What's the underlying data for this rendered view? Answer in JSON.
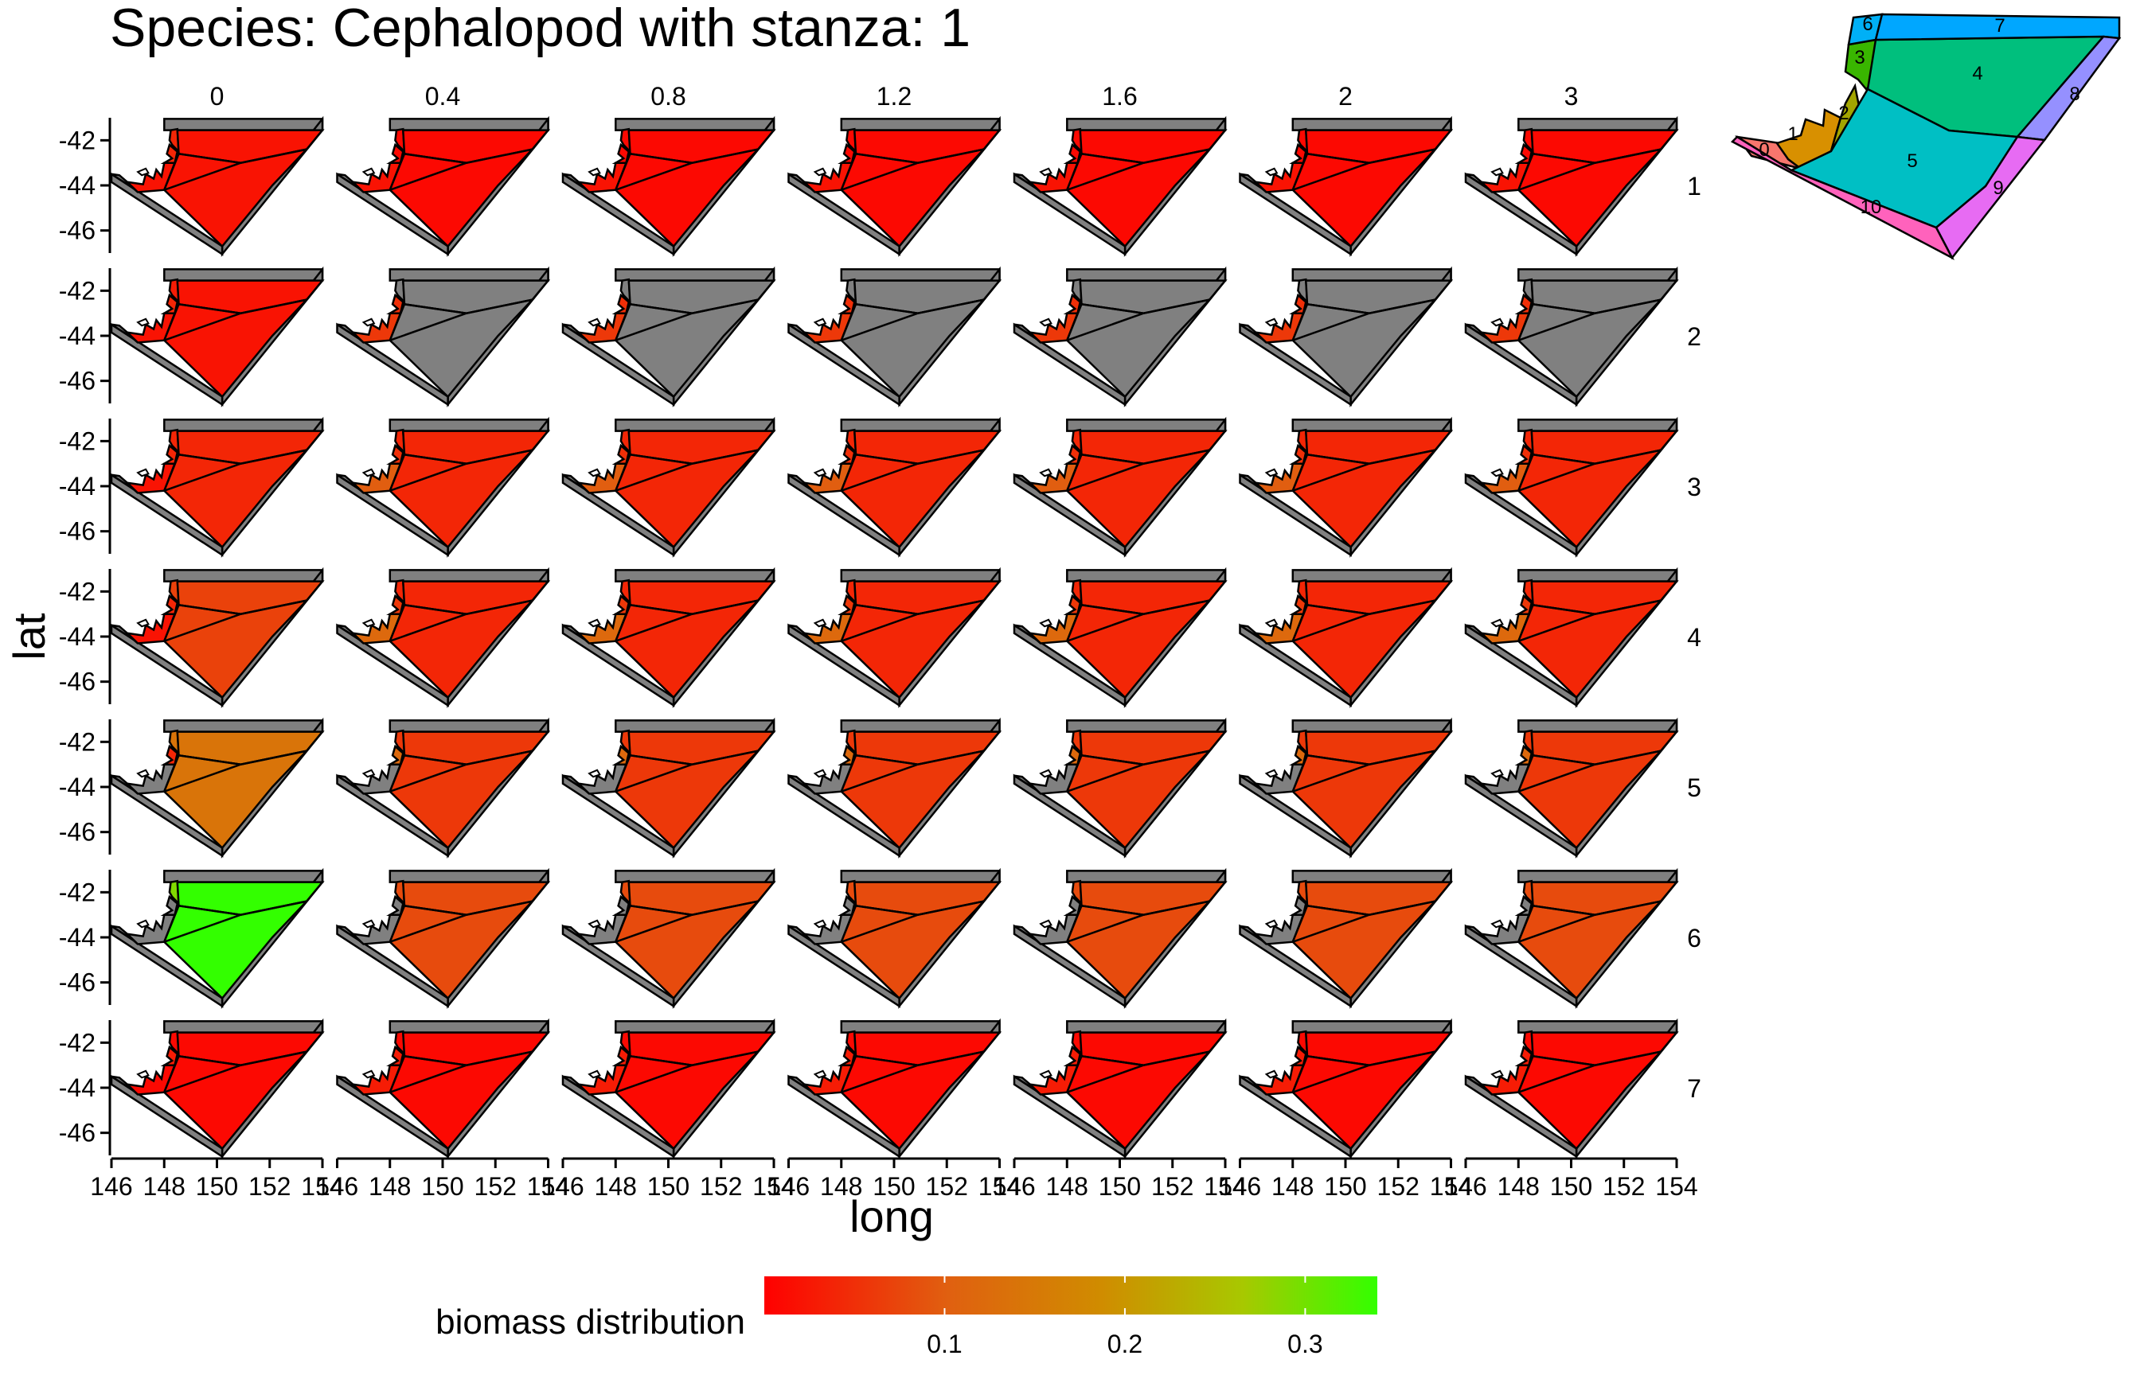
{
  "chart_data": {
    "type": "heatmap",
    "title": "Species: Cephalopod with stanza: 1",
    "xlabel": "long",
    "ylabel": "lat",
    "col_facets": [
      "0",
      "0.4",
      "0.8",
      "1.2",
      "1.6",
      "2",
      "3"
    ],
    "row_facets": [
      "1",
      "2",
      "3",
      "4",
      "5",
      "6",
      "7"
    ],
    "x_ticks": [
      "146",
      "148",
      "150",
      "152",
      "154"
    ],
    "y_ticks": [
      "-42",
      "-44",
      "-46"
    ],
    "xlim": [
      146,
      154
    ],
    "ylim": [
      -47,
      -41
    ],
    "legend": {
      "title": "biomass distribution",
      "position": "bottom",
      "ticks": [
        "0.1",
        "0.2",
        "0.3"
      ],
      "range": [
        0,
        0.34
      ],
      "colors": [
        "#ff0000",
        "#e06010",
        "#d08c00",
        "#a8c800",
        "#33ff00"
      ]
    },
    "missing_color": "#808080",
    "key_map": {
      "labels": [
        "0",
        "1",
        "2",
        "3",
        "4",
        "5",
        "6",
        "7",
        "8",
        "9",
        "10"
      ],
      "colors": [
        "#f8766d",
        "#d89000",
        "#a3a500",
        "#39b600",
        "#00bf7d",
        "#00bfc4",
        "#00b0f6",
        "#00a7ff",
        "#9590ff",
        "#e76bf3",
        "#ff62bc"
      ]
    },
    "series": [
      {
        "name": "1",
        "values": [
          [
            0.02,
            0.04,
            0.04,
            0.02,
            0.02
          ],
          [
            0.02,
            0.01,
            0.01,
            0.01,
            0.01
          ],
          [
            0.02,
            0.01,
            0.01,
            0.01,
            0.01
          ],
          [
            0.02,
            0.01,
            0.01,
            0.01,
            0.01
          ],
          [
            0.02,
            0.01,
            0.01,
            0.01,
            0.01
          ],
          [
            0.02,
            0.01,
            0.01,
            0.01,
            0.01
          ],
          [
            0.02,
            0.01,
            0.01,
            0.01,
            0.01
          ]
        ]
      },
      {
        "name": "2",
        "values": [
          [
            0.02,
            0.04,
            0.03,
            0.02,
            0.02
          ],
          [
            0.06,
            0.05,
            null,
            null,
            null
          ],
          [
            0.06,
            0.05,
            null,
            null,
            null
          ],
          [
            0.06,
            0.05,
            null,
            null,
            null
          ],
          [
            0.06,
            0.05,
            null,
            null,
            null
          ],
          [
            0.06,
            0.05,
            null,
            null,
            null
          ],
          [
            0.06,
            0.05,
            null,
            null,
            null
          ]
        ]
      },
      {
        "name": "3",
        "values": [
          [
            0.02,
            0.04,
            0.04,
            0.04,
            0.04
          ],
          [
            0.1,
            0.05,
            0.04,
            0.04,
            0.04
          ],
          [
            0.1,
            0.05,
            0.04,
            0.04,
            0.04
          ],
          [
            0.1,
            0.05,
            0.04,
            0.04,
            0.04
          ],
          [
            0.1,
            0.05,
            0.04,
            0.04,
            0.04
          ],
          [
            0.1,
            0.05,
            0.04,
            0.04,
            0.04
          ],
          [
            0.1,
            0.05,
            0.04,
            0.04,
            0.04
          ]
        ]
      },
      {
        "name": "4",
        "values": [
          [
            0.02,
            0.04,
            0.07,
            0.07,
            0.07
          ],
          [
            0.12,
            0.06,
            0.04,
            0.04,
            0.04
          ],
          [
            0.12,
            0.06,
            0.04,
            0.04,
            0.04
          ],
          [
            0.12,
            0.06,
            0.04,
            0.04,
            0.04
          ],
          [
            0.12,
            0.06,
            0.04,
            0.04,
            0.04
          ],
          [
            0.12,
            0.06,
            0.04,
            0.04,
            0.04
          ],
          [
            0.12,
            0.06,
            0.04,
            0.04,
            0.04
          ]
        ]
      },
      {
        "name": "5",
        "values": [
          [
            null,
            0.04,
            0.14,
            0.14,
            0.14
          ],
          [
            null,
            0.12,
            0.06,
            0.06,
            0.06
          ],
          [
            null,
            0.12,
            0.06,
            0.06,
            0.06
          ],
          [
            null,
            0.12,
            0.06,
            0.06,
            0.06
          ],
          [
            null,
            0.12,
            0.06,
            0.06,
            0.06
          ],
          [
            null,
            0.12,
            0.06,
            0.06,
            0.06
          ],
          [
            null,
            0.12,
            0.06,
            0.06,
            0.06
          ]
        ]
      },
      {
        "name": "6",
        "values": [
          [
            null,
            null,
            0.29,
            0.34,
            0.34
          ],
          [
            null,
            null,
            0.08,
            0.08,
            0.08
          ],
          [
            null,
            null,
            0.08,
            0.08,
            0.08
          ],
          [
            null,
            null,
            0.08,
            0.08,
            0.08
          ],
          [
            null,
            null,
            0.08,
            0.08,
            0.08
          ],
          [
            null,
            null,
            0.08,
            0.08,
            0.08
          ],
          [
            null,
            null,
            0.08,
            0.08,
            0.08
          ]
        ]
      },
      {
        "name": "7",
        "values": [
          [
            0.01,
            0.03,
            0.01,
            0.01,
            0.01
          ],
          [
            0.03,
            0.03,
            0.01,
            0.01,
            0.01
          ],
          [
            0.03,
            0.03,
            0.01,
            0.01,
            0.01
          ],
          [
            0.03,
            0.03,
            0.01,
            0.01,
            0.01
          ],
          [
            0.03,
            0.03,
            0.01,
            0.01,
            0.01
          ],
          [
            0.03,
            0.03,
            0.01,
            0.01,
            0.01
          ],
          [
            0.03,
            0.03,
            0.01,
            0.01,
            0.01
          ]
        ]
      }
    ]
  }
}
